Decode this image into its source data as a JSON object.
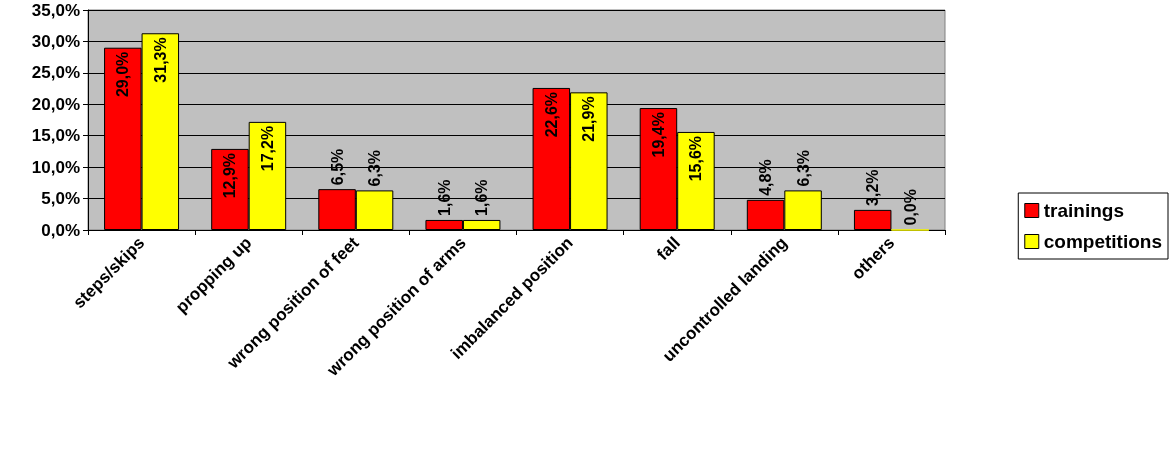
{
  "chart_data": {
    "type": "bar",
    "categories": [
      "steps/skips",
      "propping up",
      "wrong position of feet",
      "wrong position of arms",
      "imbalanced position",
      "fall",
      "uncontrolled landing",
      "others"
    ],
    "series": [
      {
        "name": "trainings",
        "color": "#ff0000",
        "values": [
          29.0,
          12.9,
          6.5,
          1.6,
          22.6,
          19.4,
          4.8,
          3.2
        ],
        "value_labels": [
          "29,0%",
          "12,9%",
          "6,5%",
          "1,6%",
          "22,6%",
          "19,4%",
          "4,8%",
          "3,2%"
        ]
      },
      {
        "name": "competitions",
        "color": "#ffff00",
        "values": [
          31.3,
          17.2,
          6.3,
          1.6,
          21.9,
          15.6,
          6.3,
          0.0
        ],
        "value_labels": [
          "31,3%",
          "17,2%",
          "6,3%",
          "1,6%",
          "21,9%",
          "15,6%",
          "6,3%",
          "0,0%"
        ]
      }
    ],
    "ylim": [
      0,
      35
    ],
    "yticks": [
      {
        "value": 0,
        "label": "0,0%"
      },
      {
        "value": 5,
        "label": "5,0%"
      },
      {
        "value": 10,
        "label": "10,0%"
      },
      {
        "value": 15,
        "label": "15,0%"
      },
      {
        "value": 20,
        "label": "20,0%"
      },
      {
        "value": 25,
        "label": "25,0%"
      },
      {
        "value": 30,
        "label": "30,0%"
      },
      {
        "value": 35,
        "label": "35,0%"
      }
    ],
    "grid": "y",
    "legend": "right"
  }
}
